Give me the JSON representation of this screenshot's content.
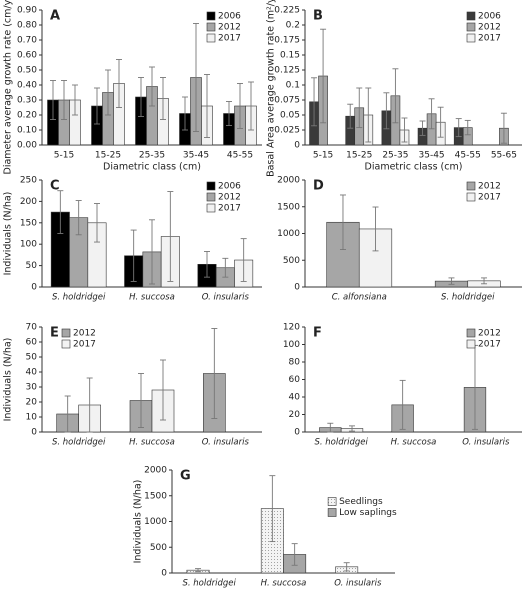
{
  "chart_data": [
    {
      "type": "bar",
      "panel": "A",
      "xlabel": "Diametric class (cm)",
      "ylabel": "Diameter average growth rate (cm/year)",
      "categories": [
        "5-15",
        "15-25",
        "25-35",
        "35-45",
        "45-55"
      ],
      "series": [
        {
          "name": "2006",
          "color": "#000000",
          "values": [
            0.3,
            0.26,
            0.32,
            0.21,
            0.21
          ],
          "errors": [
            0.13,
            0.12,
            0.13,
            0.11,
            0.08
          ]
        },
        {
          "name": "2012",
          "color": "#a6a6a6",
          "values": [
            0.3,
            0.35,
            0.39,
            0.45,
            0.26
          ],
          "errors": [
            0.13,
            0.15,
            0.13,
            0.36,
            0.15
          ]
        },
        {
          "name": "2017",
          "color": "#f2f2f2",
          "values": [
            0.3,
            0.41,
            0.31,
            0.26,
            0.26
          ],
          "errors": [
            0.1,
            0.16,
            0.14,
            0.21,
            0.16
          ]
        }
      ],
      "ylim": [
        0,
        0.9
      ],
      "yticks": [
        {
          "value": 0,
          "label": "0.00"
        },
        {
          "value": 0.1,
          "label": "0.10"
        },
        {
          "value": 0.2,
          "label": "0.20"
        },
        {
          "value": 0.3,
          "label": "0.30"
        },
        {
          "value": 0.4,
          "label": "0.40"
        },
        {
          "value": 0.5,
          "label": "0.50"
        },
        {
          "value": 0.6,
          "label": "0.60"
        },
        {
          "value": 0.7,
          "label": "0.70"
        },
        {
          "value": 0.8,
          "label": "0.80"
        },
        {
          "value": 0.9,
          "label": "0.90"
        }
      ],
      "legend": "upper right"
    },
    {
      "type": "bar",
      "panel": "B",
      "xlabel": "Diametric class (cm)",
      "ylabel": "Basal Area average growth rate (m²/year)",
      "categories": [
        "5-15",
        "15-25",
        "25-35",
        "35-45",
        "45-55",
        "55-65"
      ],
      "series": [
        {
          "name": "2006",
          "color": "#3a3a3a",
          "values": [
            0.072,
            0.048,
            0.057,
            0.028,
            0.029,
            null
          ],
          "errors": [
            0.04,
            0.02,
            0.03,
            0.012,
            0.015,
            null
          ]
        },
        {
          "name": "2012",
          "color": "#a6a6a6",
          "values": [
            0.115,
            0.062,
            0.082,
            0.052,
            0.029,
            0.028
          ],
          "errors": [
            0.078,
            0.033,
            0.045,
            0.025,
            0.012,
            0.025
          ]
        },
        {
          "name": "2017",
          "color": "#f2f2f2",
          "values": [
            null,
            0.05,
            0.025,
            0.038,
            null,
            null
          ],
          "errors": [
            null,
            0.045,
            0.02,
            0.025,
            null,
            null
          ]
        }
      ],
      "ylim": [
        0,
        0.225
      ],
      "yticks": [
        0,
        0.025,
        0.05,
        0.075,
        0.1,
        0.125,
        0.15,
        0.175,
        0.2,
        0.225
      ],
      "legend": "upper right"
    },
    {
      "type": "bar",
      "panel": "C",
      "ylabel": "Individuals (N/ha)",
      "categories": [
        "S. holdridgei",
        "H. succosa",
        "O. insularis"
      ],
      "series": [
        {
          "name": "2006",
          "color": "#000000",
          "values": [
            175,
            73,
            53
          ],
          "errors": [
            50,
            60,
            30
          ]
        },
        {
          "name": "2012",
          "color": "#a6a6a6",
          "values": [
            162,
            82,
            45
          ],
          "errors": [
            40,
            75,
            22
          ]
        },
        {
          "name": "2017",
          "color": "#f2f2f2",
          "values": [
            150,
            118,
            63
          ],
          "errors": [
            45,
            105,
            50
          ]
        }
      ],
      "ylim": [
        0,
        250
      ],
      "yticks": [
        0,
        50,
        100,
        150,
        200,
        250
      ],
      "legend": "upper right"
    },
    {
      "type": "bar",
      "panel": "D",
      "categories": [
        "C. alfonsiana",
        "S. holdridgei"
      ],
      "series": [
        {
          "name": "2012",
          "color": "#a6a6a6",
          "values": [
            1210,
            110
          ],
          "errors": [
            510,
            60
          ]
        },
        {
          "name": "2017",
          "color": "#f2f2f2",
          "values": [
            1085,
            115
          ],
          "errors": [
            410,
            55
          ]
        }
      ],
      "ylim": [
        0,
        2000
      ],
      "yticks": [
        0,
        500,
        1000,
        1500,
        2000
      ],
      "legend": "upper right"
    },
    {
      "type": "bar",
      "panel": "E",
      "ylabel": "Individuals (N/ha)",
      "categories": [
        "S. holdridgei",
        "H. succosa",
        "O. insularis"
      ],
      "series": [
        {
          "name": "2012",
          "color": "#a6a6a6",
          "values": [
            12,
            21,
            39
          ],
          "errors": [
            12,
            18,
            30
          ]
        },
        {
          "name": "2017",
          "color": "#f2f2f2",
          "values": [
            18,
            28,
            null
          ],
          "errors": [
            18,
            20,
            null
          ]
        }
      ],
      "ylim": [
        0,
        70
      ],
      "yticks": [
        0,
        10,
        20,
        30,
        40,
        50,
        60,
        70
      ],
      "legend": "upper left"
    },
    {
      "type": "bar",
      "panel": "F",
      "categories": [
        "S. holdridgei",
        "H. succosa",
        "O. insularis"
      ],
      "series": [
        {
          "name": "2012",
          "color": "#a6a6a6",
          "values": [
            5,
            31,
            51
          ],
          "errors": [
            5,
            28,
            48
          ]
        },
        {
          "name": "2017",
          "color": "#f2f2f2",
          "values": [
            4,
            null,
            null
          ],
          "errors": [
            3,
            null,
            null
          ]
        }
      ],
      "ylim": [
        0,
        120
      ],
      "yticks": [
        0,
        20,
        40,
        60,
        80,
        100,
        120
      ],
      "legend": "upper right"
    },
    {
      "type": "bar",
      "panel": "G",
      "ylabel": "Individuals (N/ha)",
      "categories": [
        "S. holdridgei",
        "H. succosa",
        "O. insularis"
      ],
      "series": [
        {
          "name": "Seedlings",
          "color": "#f2f2f2",
          "pattern": "dots",
          "values": [
            55,
            1250,
            120
          ],
          "errors": [
            30,
            640,
            80
          ]
        },
        {
          "name": "Low saplings",
          "color": "#a6a6a6",
          "values": [
            null,
            360,
            null
          ],
          "errors": [
            null,
            210,
            null
          ]
        }
      ],
      "ylim": [
        0,
        2000
      ],
      "yticks": [
        0,
        500,
        1000,
        1500,
        2000
      ],
      "legend": "center right"
    }
  ]
}
